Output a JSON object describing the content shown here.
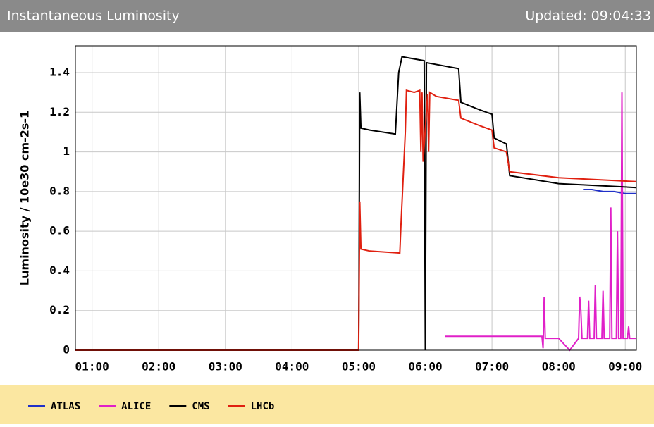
{
  "header": {
    "title": "Instantaneous Luminosity",
    "updated": "Updated: 09:04:33"
  },
  "chart_data": {
    "type": "line",
    "ylabel": "Luminosity / 10e30 cm-2s-1",
    "xlim": [
      45,
      550
    ],
    "xticks": [
      {
        "value": 60,
        "label": "01:00"
      },
      {
        "value": 120,
        "label": "02:00"
      },
      {
        "value": 180,
        "label": "03:00"
      },
      {
        "value": 240,
        "label": "04:00"
      },
      {
        "value": 300,
        "label": "05:00"
      },
      {
        "value": 360,
        "label": "06:00"
      },
      {
        "value": 420,
        "label": "07:00"
      },
      {
        "value": 480,
        "label": "08:00"
      },
      {
        "value": 540,
        "label": "09:00"
      }
    ],
    "ylim": [
      0,
      1.535
    ],
    "yticks": [
      0,
      0.2,
      0.4,
      0.6,
      0.8,
      1,
      1.2,
      1.4
    ],
    "grid": true,
    "series": [
      {
        "name": "ATLAS",
        "color": "#2030c8",
        "x": [
          502,
          510,
          520,
          530,
          540,
          550
        ],
        "values": [
          0.81,
          0.81,
          0.8,
          0.8,
          0.79,
          0.79
        ]
      },
      {
        "name": "ALICE",
        "color": "#e020c8",
        "x": [
          378,
          420,
          465,
          466,
          467,
          468,
          475,
          480,
          490,
          498,
          499,
          500,
          501,
          506,
          507,
          508,
          512,
          513,
          514,
          515,
          519,
          520,
          521,
          526,
          527,
          528,
          532,
          533,
          534,
          536,
          537,
          538,
          542,
          543,
          544,
          550
        ],
        "values": [
          0.07,
          0.07,
          0.07,
          0.01,
          0.27,
          0.06,
          0.06,
          0.06,
          0.0,
          0.06,
          0.27,
          0.2,
          0.06,
          0.06,
          0.25,
          0.06,
          0.06,
          0.33,
          0.06,
          0.06,
          0.06,
          0.3,
          0.06,
          0.06,
          0.72,
          0.06,
          0.06,
          0.6,
          0.06,
          0.06,
          1.3,
          0.06,
          0.06,
          0.12,
          0.06,
          0.06
        ]
      },
      {
        "name": "CMS",
        "color": "#000000",
        "x": [
          45,
          300,
          301,
          302,
          310,
          333,
          336,
          339,
          359,
          360,
          361,
          390,
          392,
          410,
          420,
          422,
          433,
          436,
          480,
          550
        ],
        "values": [
          0,
          0,
          1.3,
          1.12,
          1.11,
          1.09,
          1.4,
          1.48,
          1.46,
          0,
          1.45,
          1.42,
          1.25,
          1.21,
          1.19,
          1.07,
          1.04,
          0.88,
          0.84,
          0.82
        ]
      },
      {
        "name": "LHCb",
        "color": "#e02010",
        "x": [
          45,
          300,
          301,
          302,
          310,
          337,
          338,
          342,
          343,
          350,
          355,
          356,
          357,
          358,
          362,
          363,
          364,
          370,
          390,
          392,
          410,
          420,
          422,
          433,
          436,
          480,
          550
        ],
        "values": [
          0,
          0,
          0.75,
          0.51,
          0.5,
          0.49,
          0.62,
          1.1,
          1.31,
          1.3,
          1.31,
          1.0,
          1.3,
          0.95,
          1.29,
          1.0,
          1.3,
          1.28,
          1.26,
          1.17,
          1.13,
          1.11,
          1.02,
          1.0,
          0.9,
          0.87,
          0.85
        ]
      }
    ]
  }
}
